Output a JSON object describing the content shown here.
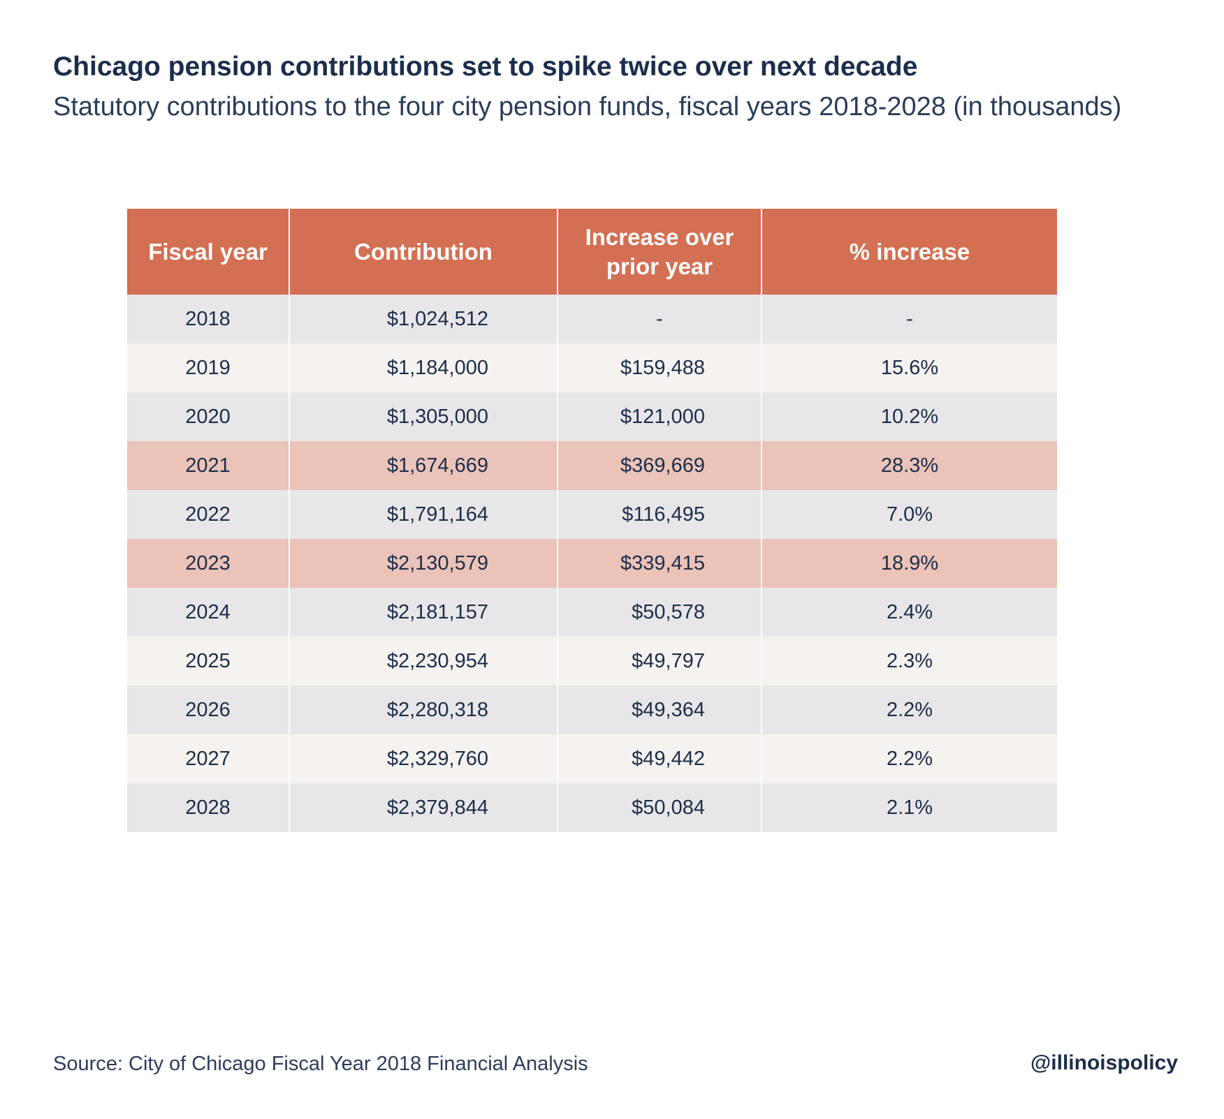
{
  "chart_data": {
    "type": "table",
    "title": "Chicago pension contributions set to spike twice over next decade",
    "subtitle": "Statutory contributions to the four city pension funds, fiscal years 2018-2028 (in thousands)",
    "columns": [
      "Fiscal year",
      "Contribution",
      "Increase over prior year",
      "% increase"
    ],
    "rows": [
      {
        "year": "2018",
        "contribution": "$1,024,512",
        "increase": "-",
        "pct": "-",
        "highlight": false
      },
      {
        "year": "2019",
        "contribution": "$1,184,000",
        "increase": "$159,488",
        "pct": "15.6%",
        "highlight": false
      },
      {
        "year": "2020",
        "contribution": "$1,305,000",
        "increase": "$121,000",
        "pct": "10.2%",
        "highlight": false
      },
      {
        "year": "2021",
        "contribution": "$1,674,669",
        "increase": "$369,669",
        "pct": "28.3%",
        "highlight": true
      },
      {
        "year": "2022",
        "contribution": "$1,791,164",
        "increase": "$116,495",
        "pct": "7.0%",
        "highlight": false
      },
      {
        "year": "2023",
        "contribution": "$2,130,579",
        "increase": "$339,415",
        "pct": "18.9%",
        "highlight": true
      },
      {
        "year": "2024",
        "contribution": "$2,181,157",
        "increase": "$50,578",
        "pct": "2.4%",
        "highlight": false
      },
      {
        "year": "2025",
        "contribution": "$2,230,954",
        "increase": "$49,797",
        "pct": "2.3%",
        "highlight": false
      },
      {
        "year": "2026",
        "contribution": "$2,280,318",
        "increase": "$49,364",
        "pct": "2.2%",
        "highlight": false
      },
      {
        "year": "2027",
        "contribution": "$2,329,760",
        "increase": "$49,442",
        "pct": "2.2%",
        "highlight": false
      },
      {
        "year": "2028",
        "contribution": "$2,379,844",
        "increase": "$50,084",
        "pct": "2.1%",
        "highlight": false
      }
    ]
  },
  "footer": {
    "source": "Source: City of Chicago Fiscal Year 2018 Financial Analysis",
    "handle": "@illinoispolicy"
  },
  "colors": {
    "header": "#d36f52",
    "highlight_row": "#ebc3b8",
    "row_gray": "#e8e6e8",
    "row_light": "#f5f2f0",
    "text": "#1b2e4b"
  }
}
